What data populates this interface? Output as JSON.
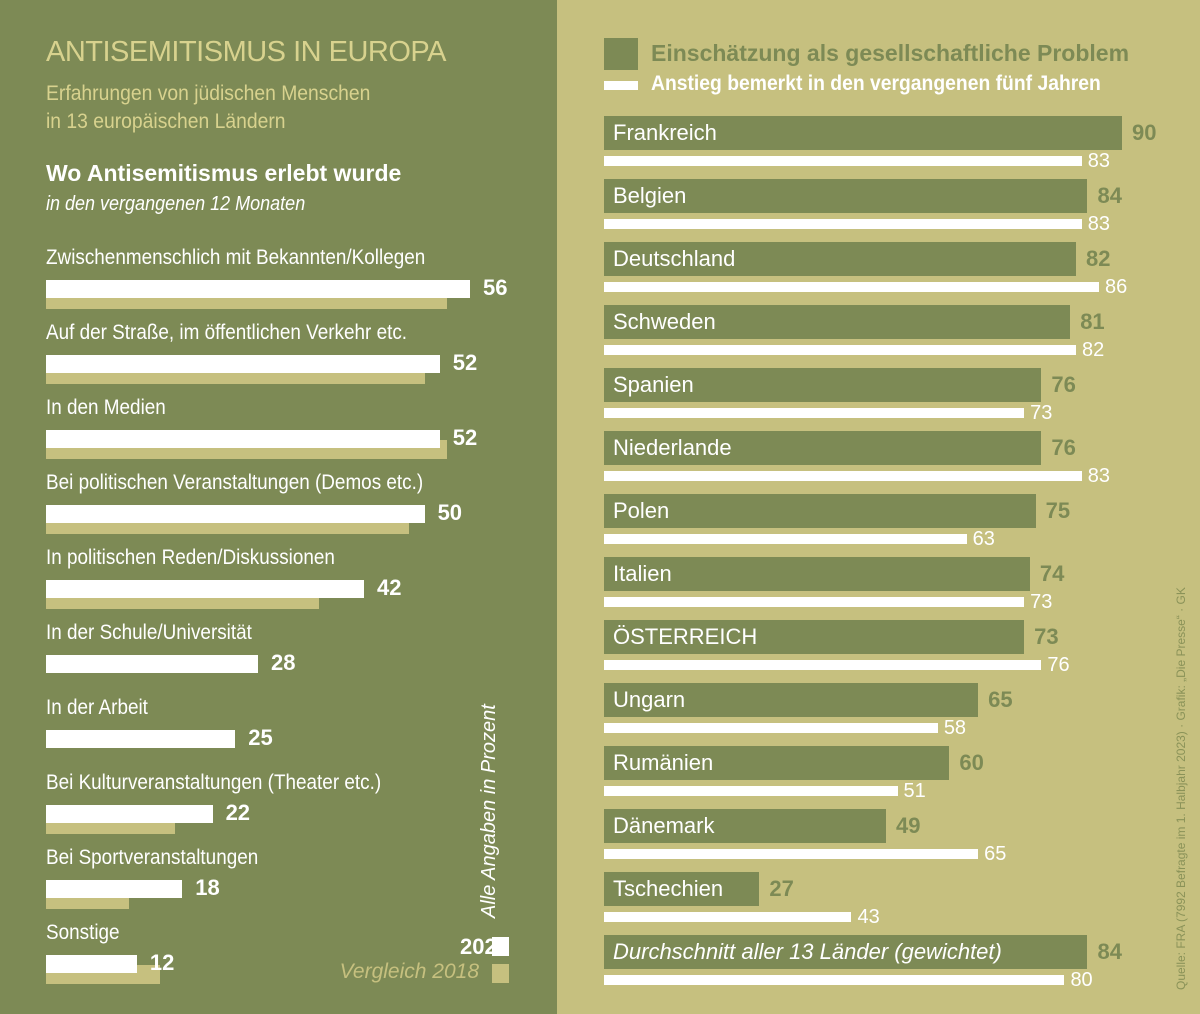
{
  "title": "ANTISEMITISMUS IN EUROPA",
  "subtitle_1": "Erfahrungen von jüdischen Menschen",
  "subtitle_2": "in 13 europäischen Ländern",
  "colors": {
    "left_bg": "#7d8a55",
    "right_bg": "#c6c07f",
    "bar_2023": "#ffffff",
    "bar_2018": "#c6c07f"
  },
  "chart_data": [
    {
      "type": "bar",
      "title": "Wo Antisemitismus erlebt wurde",
      "subtitle": "in den vergangenen 12 Monaten",
      "note": "Alle Angaben in Prozent",
      "categories": [
        "Zwischenmenschlich mit Bekannten/Kollegen",
        "Auf der Straße, im öffentlichen Verkehr etc.",
        "In den Medien",
        "Bei politischen Veranstaltungen (Demos etc.)",
        "In politischen Reden/Diskussionen",
        "In der Schule/Universität",
        "In der Arbeit",
        "Bei Kulturveranstaltungen (Theater etc.)",
        "Bei Sportveranstaltungen",
        "Sonstige"
      ],
      "series": [
        {
          "name": "2023",
          "values": [
            56,
            52,
            52,
            50,
            42,
            28,
            25,
            22,
            18,
            12
          ]
        },
        {
          "name": "Vergleich 2018",
          "values": [
            53,
            50,
            53,
            48,
            36,
            null,
            null,
            17,
            11,
            15
          ]
        }
      ]
    },
    {
      "type": "bar",
      "categories": [
        "Frankreich",
        "Belgien",
        "Deutschland",
        "Schweden",
        "Spanien",
        "Niederlande",
        "Polen",
        "Italien",
        "ÖSTERREICH",
        "Ungarn",
        "Rumänien",
        "Dänemark",
        "Tschechien",
        "Durchschnitt aller 13 Länder (gewichtet)"
      ],
      "series": [
        {
          "name": "Einschätzung als gesellschaftliche Problem",
          "values": [
            90,
            84,
            82,
            81,
            76,
            76,
            75,
            74,
            73,
            65,
            60,
            49,
            27,
            84
          ]
        },
        {
          "name": "Anstieg bemerkt in den vergangenen fünf Jahren",
          "values": [
            83,
            83,
            86,
            82,
            73,
            83,
            63,
            73,
            76,
            58,
            51,
            65,
            43,
            80
          ]
        }
      ]
    }
  ],
  "source": "Quelle: FRA (7992 Befragte im 1. Halbjahr 2023) · Grafik: „Die Presse“ · GK"
}
